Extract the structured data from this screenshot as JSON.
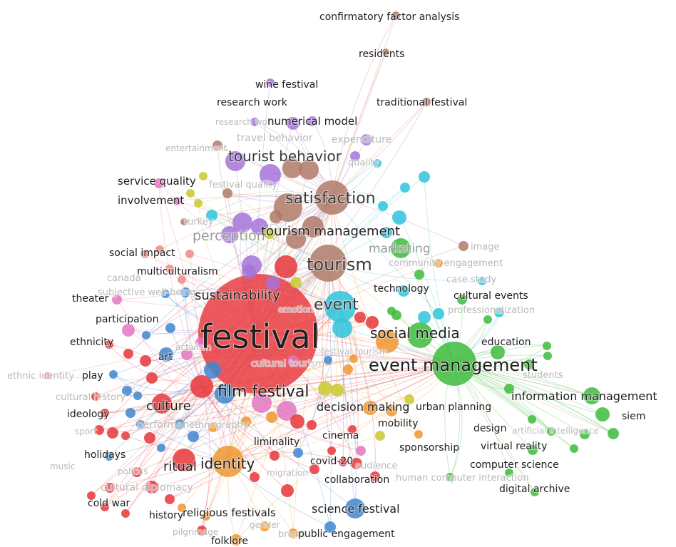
{
  "network": {
    "clusters": {
      "red": "#e8363a",
      "purple": "#a673d9",
      "brown": "#b07a6a",
      "cyan": "#2ec4dc",
      "green": "#3dbb3d",
      "blue": "#3e86d1",
      "yellow": "#c9c930",
      "orange": "#f0962e",
      "pink": "#e377c2",
      "salmon": "#f08a80"
    },
    "labels": {
      "festival": "festival",
      "event_management": "event management",
      "film_festival": "film festival",
      "tourism": "tourism",
      "satisfaction": "satisfaction",
      "tourism_management": "tourism management",
      "tourist_behavior": "tourist behavior",
      "social_media": "social media",
      "event": "event",
      "sustainability": "sustainability",
      "perception": "perception",
      "culture": "culture",
      "identity": "identity",
      "ritual": "ritual",
      "information_management": "information management",
      "confirmatory_factor_analysis": "confirmatory factor analysis",
      "residents": "residents",
      "wine_festival": "wine festival",
      "research_work": "research work",
      "traditional_festival": "traditional festival",
      "numerical_model": "numerical model",
      "travel_behavior": "travel behavior",
      "expenditure": "expenditure",
      "quality": "quality",
      "service_quality": "service quality",
      "festival_quality": "festival quality",
      "involvement": "involvement",
      "turkey": "turkey",
      "marketing": "marketing",
      "image": "image",
      "community_engagement": "community engagement",
      "social_impact": "social impact",
      "multiculturalism": "multiculturalism",
      "canada": "canada",
      "subjective_wellbeing": "subjective well-being",
      "theater": "theater",
      "case_study": "case study",
      "technology": "technology",
      "cultural_events": "cultural events",
      "professionalization": "professionalization",
      "emotion": "emotion",
      "participation": "participation",
      "education": "education",
      "ethnicity": "ethnicity",
      "art": "art",
      "activism": "activism",
      "cultural_tourism": "cultural tourism",
      "festival_tourism": "festival tourism",
      "students": "students",
      "ethnic_identity": "ethnic identity",
      "play": "play",
      "cultural_history": "cultural history",
      "ideology": "ideology",
      "performance": "performance",
      "ethnography": "ethnography",
      "decision_making": "decision making",
      "urban_planning": "urban planning",
      "siem": "siem",
      "mobility": "mobility",
      "design": "design",
      "artificial_intelligence": "artificial intelligence",
      "cinema": "cinema",
      "liminality": "liminality",
      "sponsorship": "sponsorship",
      "virtual_reality": "virtual reality",
      "holidays": "holidays",
      "covid_20": "covid-20",
      "audience": "audience",
      "computer_science": "computer science",
      "collaboration": "collaboration",
      "human_computer_interaction": "human computer interaction",
      "cultural_diplomacy": "cultural diplomacy",
      "digital_archive": "digital archive",
      "cold_war": "cold war",
      "science_festival": "science festival",
      "history": "history",
      "religious_festivals": "religious festivals",
      "public_engagement": "public engagement",
      "folklore": "folklore",
      "brand": "brand",
      "music": "music",
      "sport": "sport",
      "politics": "politics",
      "pilgrimage": "pilgrimage",
      "gender": "gender",
      "migration": "migration",
      "entertainment": "entertainment"
    }
  }
}
